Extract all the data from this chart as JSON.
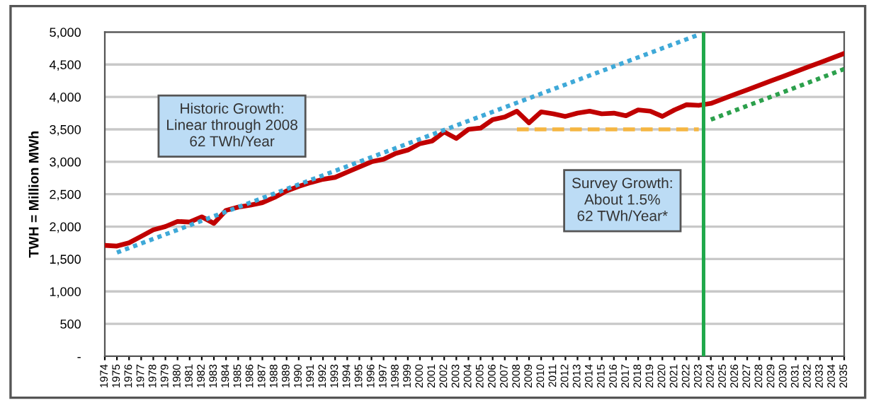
{
  "chart_data": {
    "type": "line",
    "ylabel": "TWH = Million MWh",
    "categories": [
      "1974",
      "1975",
      "1976",
      "1977",
      "1978",
      "1979",
      "1980",
      "1981",
      "1982",
      "1983",
      "1984",
      "1985",
      "1986",
      "1987",
      "1988",
      "1989",
      "1990",
      "1991",
      "1992",
      "1993",
      "1994",
      "1995",
      "1996",
      "1997",
      "1998",
      "1999",
      "2000",
      "2001",
      "2002",
      "2003",
      "2004",
      "2005",
      "2006",
      "2007",
      "2008",
      "2009",
      "2010",
      "2011",
      "2012",
      "2013",
      "2014",
      "2015",
      "2016",
      "2017",
      "2018",
      "2019",
      "2020",
      "2021",
      "2022",
      "2023",
      "2024",
      "2025",
      "2026",
      "2027",
      "2028",
      "2029",
      "2030",
      "2031",
      "2032",
      "2033",
      "2034",
      "2035"
    ],
    "series": [
      {
        "color": "#c00000",
        "line_style": "solid",
        "values": [
          1710,
          1700,
          1750,
          1850,
          1950,
          2000,
          2080,
          2070,
          2150,
          2050,
          2250,
          2300,
          2330,
          2370,
          2450,
          2550,
          2620,
          2680,
          2730,
          2760,
          2840,
          2920,
          3000,
          3040,
          3130,
          3180,
          3280,
          3320,
          3460,
          3360,
          3500,
          3520,
          3650,
          3690,
          3780,
          3600,
          3770,
          3740,
          3700,
          3750,
          3780,
          3740,
          3750,
          3710,
          3800,
          3780,
          3700,
          3800,
          3880,
          3870,
          3900,
          3970,
          4040,
          4110,
          4180,
          4250,
          4320,
          4390,
          4460,
          4530,
          4600,
          4670
        ]
      },
      {
        "color": "#3fa9d8",
        "line_style": "dotted",
        "values": [
          null,
          1600,
          null,
          null,
          null,
          null,
          null,
          null,
          null,
          null,
          null,
          null,
          null,
          null,
          null,
          null,
          null,
          null,
          null,
          null,
          null,
          null,
          null,
          null,
          null,
          null,
          null,
          null,
          null,
          null,
          null,
          null,
          null,
          null,
          null,
          null,
          null,
          null,
          null,
          null,
          null,
          null,
          null,
          null,
          null,
          null,
          null,
          null,
          null,
          4960,
          null,
          null,
          null,
          null,
          null,
          null,
          null,
          null,
          null,
          null,
          null,
          null
        ]
      },
      {
        "color": "#f5b642",
        "line_style": "dashed",
        "values": [
          null,
          null,
          null,
          null,
          null,
          null,
          null,
          null,
          null,
          null,
          null,
          null,
          null,
          null,
          null,
          null,
          null,
          null,
          null,
          null,
          null,
          null,
          null,
          null,
          null,
          null,
          null,
          null,
          null,
          null,
          null,
          null,
          null,
          null,
          3500,
          null,
          null,
          null,
          null,
          null,
          null,
          null,
          null,
          null,
          null,
          null,
          null,
          null,
          null,
          3500,
          null,
          null,
          null,
          null,
          null,
          null,
          null,
          null,
          null,
          null,
          null,
          null
        ]
      },
      {
        "color": "#2ca04c",
        "line_style": "dotted",
        "values": [
          null,
          null,
          null,
          null,
          null,
          null,
          null,
          null,
          null,
          null,
          null,
          null,
          null,
          null,
          null,
          null,
          null,
          null,
          null,
          null,
          null,
          null,
          null,
          null,
          null,
          null,
          null,
          null,
          null,
          null,
          null,
          null,
          null,
          null,
          null,
          null,
          null,
          null,
          null,
          null,
          null,
          null,
          null,
          null,
          null,
          null,
          null,
          null,
          null,
          null,
          3650,
          null,
          null,
          null,
          null,
          null,
          null,
          null,
          null,
          null,
          null,
          4430
        ]
      }
    ],
    "ylim": [
      0,
      5000
    ],
    "yticks": [
      {
        "value": 0,
        "label": "-"
      },
      {
        "value": 500,
        "label": "500"
      },
      {
        "value": 1000,
        "label": "1,000"
      },
      {
        "value": 1500,
        "label": "1,500"
      },
      {
        "value": 2000,
        "label": "2,000"
      },
      {
        "value": 2500,
        "label": "2,500"
      },
      {
        "value": 3000,
        "label": "3,000"
      },
      {
        "value": 3500,
        "label": "3,500"
      },
      {
        "value": 4000,
        "label": "4,000"
      },
      {
        "value": 4500,
        "label": "4,500"
      },
      {
        "value": 5000,
        "label": "5,000"
      }
    ],
    "ref_lines": [
      {
        "axis": "x",
        "value": "2023",
        "color": "#1fa84a",
        "line_style": "solid"
      }
    ],
    "annotations": [
      "Historic Growth:\nLinear through 2008\n62 TWh/Year",
      "Survey Growth:\nAbout 1.5%\n62 TWh/Year*"
    ],
    "grid": "y",
    "legend": false,
    "marker": "none"
  }
}
